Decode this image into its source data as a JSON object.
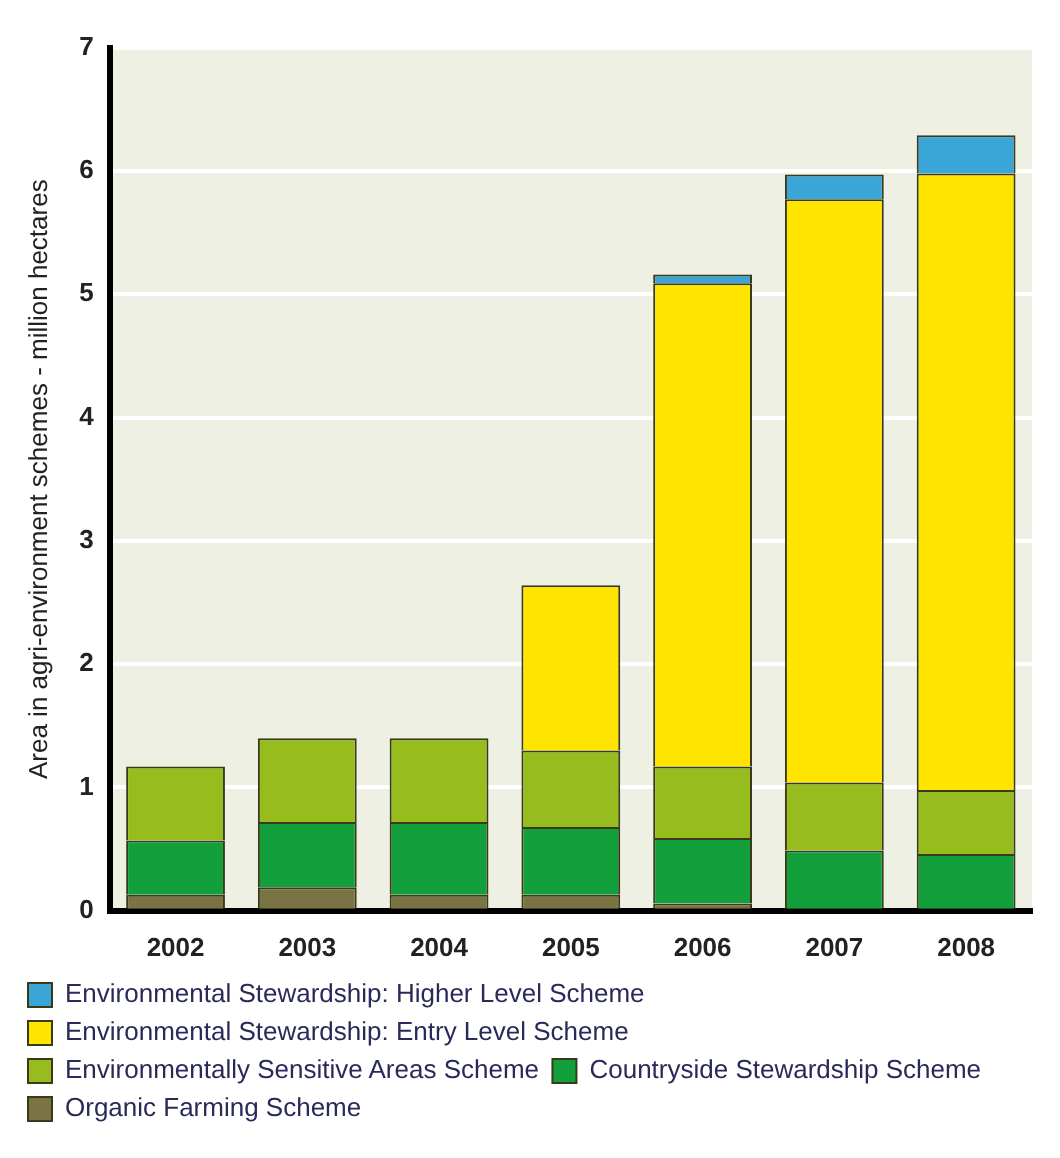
{
  "chart_data": {
    "type": "bar",
    "stacked": true,
    "ylabel": "Area in agri-environment schemes - million hectares",
    "categories": [
      "2002",
      "2003",
      "2004",
      "2005",
      "2006",
      "2007",
      "2008"
    ],
    "series": [
      {
        "name": "Organic Farming Scheme",
        "color": "#7a7444",
        "values": [
          0.13,
          0.19,
          0.13,
          0.13,
          0.06,
          0,
          0
        ]
      },
      {
        "name": "Countryside Stewardship Scheme",
        "color": "#13a03c",
        "values": [
          0.44,
          0.53,
          0.59,
          0.55,
          0.53,
          0.49,
          0.46
        ]
      },
      {
        "name": "Environmentally Sensitive Areas Scheme",
        "color": "#97bc1e",
        "values": [
          0.6,
          0.68,
          0.68,
          0.62,
          0.58,
          0.55,
          0.52
        ]
      },
      {
        "name": "Environmental Stewardship: Entry Level Scheme",
        "color": "#ffe500",
        "values": [
          0,
          0,
          0,
          1.34,
          3.92,
          4.73,
          5.0
        ]
      },
      {
        "name": "Environmental Stewardship: Higher Level Scheme",
        "color": "#3aa6d8",
        "values": [
          0,
          0,
          0,
          0,
          0.07,
          0.2,
          0.31
        ]
      }
    ],
    "ylim": [
      0,
      7
    ],
    "yticks": [
      0,
      1,
      2,
      3,
      4,
      5,
      6,
      7
    ],
    "grid": "y",
    "legend": "bottom"
  }
}
